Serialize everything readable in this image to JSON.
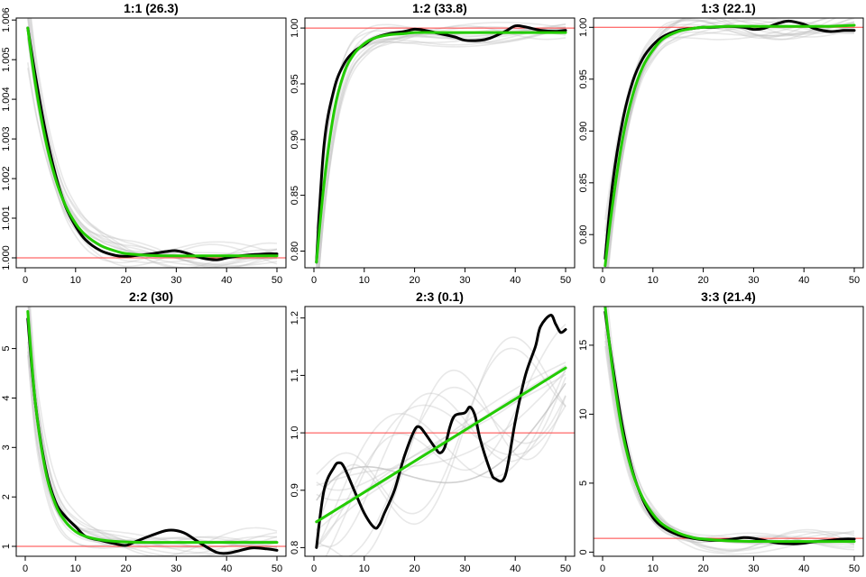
{
  "chart_data": [
    {
      "type": "line",
      "title": "1:1 (26.3)",
      "xlim": [
        0,
        50
      ],
      "ylim": [
        0.99975,
        1.00605
      ],
      "xticks": [
        0,
        10,
        20,
        30,
        40,
        50
      ],
      "xtick_labels": [
        "0",
        "10",
        "20",
        "30",
        "40",
        "50"
      ],
      "yticks": [
        1.0,
        1.001,
        1.002,
        1.003,
        1.004,
        1.005,
        1.006
      ],
      "ytick_labels": [
        "1.000",
        "1.001",
        "1.002",
        "1.003",
        "1.004",
        "1.005",
        "1.006"
      ],
      "reference_line": 1.0,
      "series": [
        {
          "role": "smoothed",
          "x": [
            0.5,
            2,
            4,
            6,
            8,
            10,
            12,
            15,
            18,
            20,
            22,
            25,
            28,
            30,
            32,
            35,
            38,
            40,
            42,
            45,
            48,
            50
          ],
          "y": [
            1.0058,
            1.0046,
            1.0032,
            1.0021,
            1.0013,
            1.0008,
            1.00045,
            1.00018,
            1.00006,
            1.00004,
            1.00006,
            1.0001,
            1.00016,
            1.00018,
            1.00012,
            1.0,
            0.99995,
            1.0,
            1.00004,
            1.00008,
            1.0001,
            1.0001
          ]
        },
        {
          "role": "fitted",
          "x": [
            0.5,
            2,
            4,
            6,
            8,
            10,
            12,
            15,
            18,
            20,
            25,
            30,
            35,
            40,
            45,
            50
          ],
          "y": [
            1.0058,
            1.0044,
            1.003,
            1.002,
            1.00132,
            1.00087,
            1.00057,
            1.00031,
            1.00017,
            1.00011,
            1.00006,
            1.00005,
            1.00005,
            1.00005,
            1.00005,
            1.00005
          ]
        }
      ]
    },
    {
      "type": "line",
      "title": "1:2 (33.8)",
      "xlim": [
        0,
        50
      ],
      "ylim": [
        0.785,
        1.009
      ],
      "xticks": [
        0,
        10,
        20,
        30,
        40,
        50
      ],
      "xtick_labels": [
        "0",
        "10",
        "20",
        "30",
        "40",
        "50"
      ],
      "yticks": [
        0.8,
        0.85,
        0.9,
        0.95,
        1.0
      ],
      "ytick_labels": [
        "0.80",
        "0.85",
        "0.90",
        "0.95",
        "1.00"
      ],
      "reference_line": 1.0,
      "series": [
        {
          "role": "smoothed",
          "x": [
            0.5,
            2,
            4,
            6,
            8,
            10,
            12,
            15,
            18,
            20,
            22,
            25,
            28,
            30,
            33,
            35,
            38,
            40,
            42,
            45,
            48,
            50
          ],
          "y": [
            0.79,
            0.895,
            0.945,
            0.968,
            0.979,
            0.985,
            0.991,
            0.995,
            0.997,
            0.999,
            0.998,
            0.995,
            0.992,
            0.989,
            0.989,
            0.991,
            0.997,
            1.002,
            1.001,
            0.998,
            0.997,
            0.998
          ]
        },
        {
          "role": "fitted",
          "x": [
            0.5,
            2,
            4,
            6,
            8,
            10,
            12,
            15,
            18,
            20,
            25,
            30,
            35,
            40,
            45,
            50
          ],
          "y": [
            0.79,
            0.86,
            0.925,
            0.96,
            0.977,
            0.986,
            0.991,
            0.994,
            0.995,
            0.996,
            0.996,
            0.996,
            0.996,
            0.996,
            0.996,
            0.996
          ]
        }
      ]
    },
    {
      "type": "line",
      "title": "1:3 (22.1)",
      "xlim": [
        0,
        50
      ],
      "ylim": [
        0.768,
        1.009
      ],
      "xticks": [
        0,
        10,
        20,
        30,
        40,
        50
      ],
      "xtick_labels": [
        "0",
        "10",
        "20",
        "30",
        "40",
        "50"
      ],
      "yticks": [
        0.8,
        0.85,
        0.9,
        0.95,
        1.0
      ],
      "ytick_labels": [
        "0.80",
        "0.85",
        "0.90",
        "0.95",
        "1.00"
      ],
      "reference_line": 1.0,
      "series": [
        {
          "role": "smoothed",
          "x": [
            0.5,
            2,
            4,
            6,
            8,
            10,
            12,
            15,
            18,
            20,
            22,
            25,
            28,
            30,
            32,
            35,
            37,
            40,
            42,
            45,
            48,
            50
          ],
          "y": [
            0.777,
            0.85,
            0.91,
            0.948,
            0.97,
            0.983,
            0.991,
            0.997,
            0.999,
            1.0,
            1.0,
            1.001,
            1.0,
            0.998,
            0.999,
            1.004,
            1.006,
            1.003,
            0.999,
            0.996,
            0.997,
            0.997
          ]
        },
        {
          "role": "fitted",
          "x": [
            0.5,
            2,
            4,
            6,
            8,
            10,
            12,
            15,
            18,
            20,
            25,
            30,
            35,
            40,
            45,
            50
          ],
          "y": [
            0.77,
            0.83,
            0.893,
            0.935,
            0.962,
            0.978,
            0.989,
            0.996,
            0.999,
            1.0,
            1.001,
            1.001,
            1.001,
            1.001,
            1.001,
            1.002
          ]
        }
      ]
    },
    {
      "type": "line",
      "title": "2:2 (30)",
      "xlim": [
        0,
        50
      ],
      "ylim": [
        0.8,
        5.85
      ],
      "xticks": [
        0,
        10,
        20,
        30,
        40,
        50
      ],
      "xtick_labels": [
        "0",
        "10",
        "20",
        "30",
        "40",
        "50"
      ],
      "yticks": [
        1,
        2,
        3,
        4,
        5
      ],
      "ytick_labels": [
        "1",
        "2",
        "3",
        "4",
        "5"
      ],
      "reference_line": 1,
      "series": [
        {
          "role": "smoothed",
          "x": [
            0.5,
            2,
            4,
            6,
            8,
            10,
            12,
            15,
            18,
            20,
            22,
            25,
            28,
            30,
            32,
            35,
            38,
            40,
            42,
            45,
            48,
            50
          ],
          "y": [
            5.6,
            3.9,
            2.6,
            1.9,
            1.6,
            1.4,
            1.2,
            1.12,
            1.05,
            1.02,
            1.1,
            1.22,
            1.32,
            1.32,
            1.25,
            1.05,
            0.88,
            0.86,
            0.9,
            0.97,
            0.95,
            0.92
          ]
        },
        {
          "role": "fitted",
          "x": [
            0.5,
            2,
            4,
            6,
            8,
            10,
            12,
            15,
            18,
            20,
            25,
            30,
            35,
            40,
            45,
            50
          ],
          "y": [
            5.75,
            3.9,
            2.55,
            1.85,
            1.5,
            1.3,
            1.2,
            1.13,
            1.1,
            1.09,
            1.08,
            1.08,
            1.08,
            1.08,
            1.08,
            1.08
          ]
        }
      ]
    },
    {
      "type": "line",
      "title": "2:3 (0.1)",
      "xlim": [
        0,
        50
      ],
      "ylim": [
        0.785,
        1.22
      ],
      "xticks": [
        0,
        10,
        20,
        30,
        40,
        50
      ],
      "xtick_labels": [
        "0",
        "10",
        "20",
        "30",
        "40",
        "50"
      ],
      "yticks": [
        0.8,
        0.9,
        1.0,
        1.1,
        1.2
      ],
      "ytick_labels": [
        "0.8",
        "0.9",
        "1.0",
        "1.1",
        "1.2"
      ],
      "reference_line": 1.0,
      "series": [
        {
          "role": "smoothed",
          "x": [
            0.5,
            2,
            4,
            5,
            6,
            8,
            10,
            12,
            13,
            14,
            16,
            18,
            20,
            21,
            22,
            24,
            25,
            26,
            27,
            28,
            30,
            31,
            32,
            33,
            35,
            36,
            38,
            40,
            42,
            44,
            45,
            47,
            48,
            49,
            50
          ],
          "y": [
            0.8,
            0.9,
            0.94,
            0.948,
            0.94,
            0.9,
            0.86,
            0.835,
            0.84,
            0.86,
            0.9,
            0.96,
            1.005,
            1.01,
            1.0,
            0.975,
            0.965,
            0.975,
            1.01,
            1.03,
            1.035,
            1.045,
            1.03,
            0.99,
            0.935,
            0.92,
            0.925,
            1.02,
            1.1,
            1.15,
            1.185,
            1.205,
            1.19,
            1.175,
            1.18
          ]
        },
        {
          "role": "fitted",
          "x": [
            0.5,
            50
          ],
          "y": [
            0.845,
            1.113
          ]
        }
      ]
    },
    {
      "type": "line",
      "title": "3:3 (21.4)",
      "xlim": [
        0,
        50
      ],
      "ylim": [
        -0.3,
        17.8
      ],
      "xticks": [
        0,
        10,
        20,
        30,
        40,
        50
      ],
      "xtick_labels": [
        "0",
        "10",
        "20",
        "30",
        "40",
        "50"
      ],
      "yticks": [
        0,
        5,
        10,
        15
      ],
      "ytick_labels": [
        "0",
        "5",
        "10",
        "15"
      ],
      "reference_line": 1,
      "series": [
        {
          "role": "smoothed",
          "x": [
            0.5,
            2,
            4,
            6,
            8,
            10,
            12,
            15,
            18,
            20,
            22,
            25,
            28,
            30,
            32,
            35,
            38,
            40,
            42,
            45,
            48,
            50
          ],
          "y": [
            17.4,
            13.5,
            9.0,
            5.8,
            3.8,
            2.5,
            1.8,
            1.25,
            1.0,
            0.9,
            0.85,
            0.9,
            1.05,
            1.0,
            0.85,
            0.65,
            0.6,
            0.65,
            0.75,
            0.85,
            0.95,
            0.95
          ]
        },
        {
          "role": "fitted",
          "x": [
            0.5,
            2,
            4,
            6,
            8,
            10,
            12,
            15,
            18,
            20,
            25,
            30,
            35,
            40,
            45,
            50
          ],
          "y": [
            17.8,
            13.2,
            8.6,
            5.7,
            3.9,
            2.75,
            2.0,
            1.4,
            1.05,
            0.95,
            0.82,
            0.78,
            0.77,
            0.77,
            0.77,
            0.77
          ]
        }
      ]
    }
  ]
}
